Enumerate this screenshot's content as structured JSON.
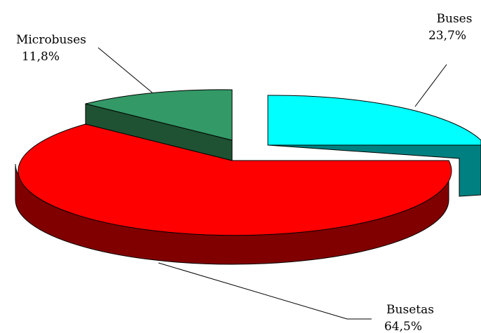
{
  "chart_data": {
    "type": "pie",
    "style": "3d-exploded",
    "slices": [
      {
        "name": "Buses",
        "value": 23.7,
        "label": "23,7%",
        "color": "#00ffff",
        "side_color": "#008080"
      },
      {
        "name": "Busetas",
        "value": 64.5,
        "label": "64,5%",
        "color": "#ff0000",
        "side_color": "#800000"
      },
      {
        "name": "Microbuses",
        "value": 11.8,
        "label": "11,8%",
        "color": "#339966",
        "side_color": "#1e5232"
      }
    ]
  }
}
